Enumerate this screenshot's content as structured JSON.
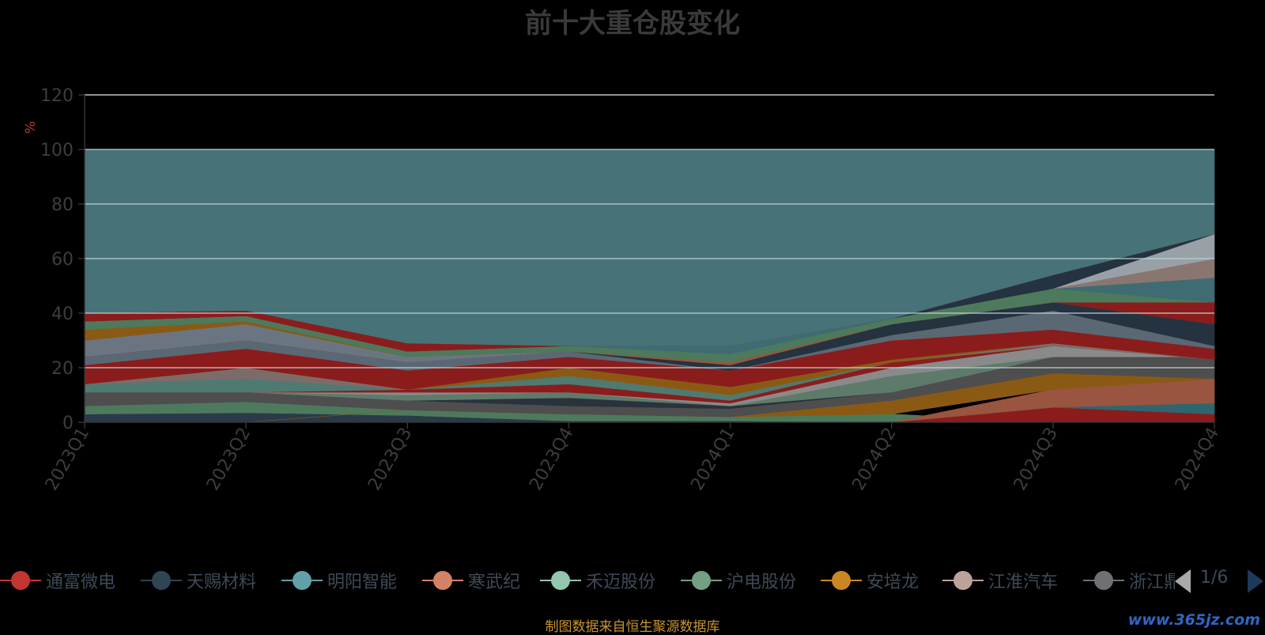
{
  "chart_data": {
    "type": "area",
    "title": "前十大重仓股变化",
    "ylabel": "%",
    "ylim": [
      0,
      120
    ],
    "yticks": [
      0,
      20,
      40,
      60,
      80,
      100,
      120
    ],
    "categories": [
      "2023Q1",
      "2023Q2",
      "2023Q3",
      "2023Q4",
      "2024Q1",
      "2024Q2",
      "2024Q3",
      "2024Q4"
    ],
    "bands": [
      {
        "color": "#2b3a49",
        "values": [
          [
            0,
            3
          ],
          [
            0,
            3.5
          ],
          [
            0,
            2.5
          ],
          [
            0,
            0.5
          ],
          [
            0,
            0.5
          ],
          [
            0,
            0
          ],
          [
            0,
            0
          ],
          [
            0,
            0
          ]
        ]
      },
      {
        "color": "#4d7a5c",
        "values": [
          [
            3,
            6
          ],
          [
            3.5,
            7.5
          ],
          [
            2.5,
            4.5
          ],
          [
            0.5,
            3
          ],
          [
            0.5,
            2
          ],
          [
            0,
            3
          ],
          [
            0,
            0
          ],
          [
            0,
            0
          ]
        ]
      },
      {
        "color": "#8b1c1c",
        "values": [
          [
            0,
            0
          ],
          [
            0,
            0
          ],
          [
            0,
            0
          ],
          [
            0,
            0
          ],
          [
            0,
            0
          ],
          [
            0,
            0
          ],
          [
            0,
            5.5
          ],
          [
            0,
            3
          ]
        ]
      },
      {
        "color": "#2e6670",
        "values": [
          [
            0,
            0
          ],
          [
            0,
            0
          ],
          [
            0,
            0
          ],
          [
            0,
            0
          ],
          [
            0,
            0
          ],
          [
            0,
            0
          ],
          [
            5.5,
            5.5
          ],
          [
            3,
            7
          ]
        ]
      },
      {
        "color": "#99553f",
        "values": [
          [
            0,
            0
          ],
          [
            0,
            0
          ],
          [
            0,
            0
          ],
          [
            0,
            0
          ],
          [
            0,
            0
          ],
          [
            0,
            0
          ],
          [
            5.5,
            12
          ],
          [
            7,
            16
          ]
        ]
      },
      {
        "color": "#8a5a14",
        "values": [
          [
            0,
            0
          ],
          [
            0,
            0
          ],
          [
            4.5,
            4.5
          ],
          [
            3,
            3
          ],
          [
            2,
            2
          ],
          [
            3,
            8
          ],
          [
            12,
            18
          ],
          [
            16,
            16
          ]
        ]
      },
      {
        "color": "#4e4e4e",
        "values": [
          [
            6,
            11
          ],
          [
            7.5,
            11
          ],
          [
            4.5,
            8
          ],
          [
            3,
            6
          ],
          [
            2,
            5
          ],
          [
            8,
            11
          ],
          [
            18,
            24
          ],
          [
            16,
            24
          ]
        ]
      },
      {
        "color": "#2a333c",
        "values": [
          [
            11,
            11
          ],
          [
            11,
            11
          ],
          [
            8,
            8
          ],
          [
            6,
            9
          ],
          [
            5,
            6
          ],
          [
            11,
            11
          ],
          [
            24,
            24
          ],
          [
            24,
            24
          ]
        ]
      },
      {
        "color": "#5e7a6a",
        "values": [
          [
            11,
            11
          ],
          [
            11,
            11
          ],
          [
            8,
            10
          ],
          [
            9,
            11
          ],
          [
            6,
            6
          ],
          [
            11,
            17
          ],
          [
            24,
            24
          ],
          [
            24,
            24
          ]
        ]
      },
      {
        "color": "#8a8a8a",
        "values": [
          [
            11,
            11
          ],
          [
            11,
            11
          ],
          [
            10,
            11
          ],
          [
            11,
            11
          ],
          [
            6,
            7
          ],
          [
            17,
            20
          ],
          [
            24,
            28
          ],
          [
            24,
            23
          ]
        ]
      },
      {
        "color": "#8b1c1c",
        "values": [
          [
            11,
            11
          ],
          [
            11,
            11
          ],
          [
            11,
            12
          ],
          [
            11,
            14
          ],
          [
            7,
            8
          ],
          [
            20,
            22
          ],
          [
            28,
            28
          ],
          [
            23,
            23
          ]
        ]
      },
      {
        "color": "#4f7a72",
        "values": [
          [
            11,
            14
          ],
          [
            11,
            16
          ],
          [
            12,
            12
          ],
          [
            14,
            17
          ],
          [
            8,
            10
          ],
          [
            22,
            22
          ],
          [
            28,
            28
          ],
          [
            23,
            23
          ]
        ]
      },
      {
        "color": "#7b6c6a",
        "values": [
          [
            14,
            14
          ],
          [
            16,
            20
          ],
          [
            12,
            12
          ],
          [
            17,
            17
          ],
          [
            10,
            10
          ],
          [
            22,
            22
          ],
          [
            28,
            29
          ],
          [
            23,
            23
          ]
        ]
      },
      {
        "color": "#8a5a14",
        "values": [
          [
            14,
            14
          ],
          [
            20,
            20
          ],
          [
            12,
            12
          ],
          [
            17,
            20
          ],
          [
            10,
            13
          ],
          [
            22,
            23
          ],
          [
            29,
            29
          ],
          [
            23,
            23
          ]
        ]
      },
      {
        "color": "#8b1c1c",
        "values": [
          [
            14,
            21
          ],
          [
            20,
            27
          ],
          [
            12,
            19
          ],
          [
            20,
            24
          ],
          [
            13,
            19
          ],
          [
            23,
            30
          ],
          [
            29,
            34
          ],
          [
            23,
            27
          ]
        ]
      },
      {
        "color": "#5a6874",
        "values": [
          [
            21,
            24
          ],
          [
            27,
            30
          ],
          [
            19,
            22
          ],
          [
            24,
            26
          ],
          [
            19,
            19
          ],
          [
            30,
            32
          ],
          [
            34,
            41
          ],
          [
            27,
            28
          ]
        ]
      },
      {
        "color": "#253240",
        "values": [
          [
            24,
            24
          ],
          [
            30,
            30
          ],
          [
            22,
            22
          ],
          [
            26,
            26
          ],
          [
            19,
            21
          ],
          [
            32,
            36
          ],
          [
            41,
            44
          ],
          [
            28,
            36
          ]
        ]
      },
      {
        "color": "#99553f",
        "values": [
          [
            24,
            24
          ],
          [
            30,
            30
          ],
          [
            22,
            22
          ],
          [
            26,
            26
          ],
          [
            21,
            22
          ],
          [
            36,
            36
          ],
          [
            44,
            44
          ],
          [
            36,
            36
          ]
        ]
      },
      {
        "color": "#8b1c1c",
        "values": [
          [
            24,
            24
          ],
          [
            30,
            30
          ],
          [
            22,
            22
          ],
          [
            26,
            26
          ],
          [
            22,
            22
          ],
          [
            36,
            36
          ],
          [
            44,
            44
          ],
          [
            36,
            44
          ]
        ]
      },
      {
        "color": "#6b7582",
        "values": [
          [
            24,
            30
          ],
          [
            30,
            36
          ],
          [
            22,
            24
          ],
          [
            26,
            26
          ],
          [
            22,
            22
          ],
          [
            36,
            36
          ],
          [
            44,
            44
          ],
          [
            44,
            44
          ]
        ]
      },
      {
        "color": "#8a5a14",
        "values": [
          [
            30,
            34
          ],
          [
            36,
            37
          ],
          [
            24,
            24
          ],
          [
            26,
            26
          ],
          [
            22,
            22
          ],
          [
            36,
            36
          ],
          [
            44,
            44
          ],
          [
            44,
            44
          ]
        ]
      },
      {
        "color": "#4d7a5c",
        "values": [
          [
            34,
            37
          ],
          [
            37,
            39
          ],
          [
            24,
            26
          ],
          [
            26,
            28
          ],
          [
            22,
            25
          ],
          [
            36,
            38
          ],
          [
            44,
            49
          ],
          [
            44,
            44
          ]
        ]
      },
      {
        "color": "#3e6c72",
        "values": [
          [
            37,
            37
          ],
          [
            39,
            39
          ],
          [
            26,
            26
          ],
          [
            28,
            28
          ],
          [
            25,
            28
          ],
          [
            38,
            38
          ],
          [
            49,
            49
          ],
          [
            44,
            53
          ]
        ]
      },
      {
        "color": "#8a7670",
        "values": [
          [
            37,
            37
          ],
          [
            39,
            39
          ],
          [
            26,
            26
          ],
          [
            28,
            28
          ],
          [
            28,
            28
          ],
          [
            38,
            38
          ],
          [
            49,
            49
          ],
          [
            53,
            60
          ]
        ]
      },
      {
        "color": "#9aa0a8",
        "values": [
          [
            37,
            37
          ],
          [
            39,
            39
          ],
          [
            26,
            26
          ],
          [
            28,
            28
          ],
          [
            28,
            28
          ],
          [
            38,
            38
          ],
          [
            49,
            49
          ],
          [
            60,
            69
          ]
        ]
      },
      {
        "color": "#253240",
        "values": [
          [
            37,
            37
          ],
          [
            39,
            39
          ],
          [
            26,
            26
          ],
          [
            28,
            28
          ],
          [
            28,
            28
          ],
          [
            38,
            38
          ],
          [
            49,
            54
          ],
          [
            69,
            69
          ]
        ]
      },
      {
        "color": "#8b1c1c",
        "values": [
          [
            37,
            40
          ],
          [
            39,
            41
          ],
          [
            26,
            29
          ],
          [
            28,
            28
          ],
          [
            28,
            28
          ],
          [
            38,
            38
          ],
          [
            54,
            54
          ],
          [
            69,
            69
          ]
        ]
      },
      {
        "color": "#477278",
        "values": [
          [
            40,
            100
          ],
          [
            41,
            100
          ],
          [
            29,
            100
          ],
          [
            28,
            100
          ],
          [
            28,
            100
          ],
          [
            38,
            100
          ],
          [
            54,
            100
          ],
          [
            69,
            100
          ]
        ]
      }
    ],
    "legend_position": "bottom",
    "grid": true
  },
  "legend": {
    "items": [
      {
        "label": "通富微电",
        "color": "#c23531"
      },
      {
        "label": "天赐材料",
        "color": "#2f4554"
      },
      {
        "label": "明阳智能",
        "color": "#61a0a8"
      },
      {
        "label": "寒武纪",
        "color": "#d48265"
      },
      {
        "label": "禾迈股份",
        "color": "#91c7ae"
      },
      {
        "label": "沪电股份",
        "color": "#749f83"
      },
      {
        "label": "安培龙",
        "color": "#ca8622"
      },
      {
        "label": "江淮汽车",
        "color": "#bda29a"
      },
      {
        "label": "浙江鼎力",
        "color": "#6e7074"
      }
    ],
    "page": "1/6"
  },
  "footer": {
    "source": "制图数据来自恒生聚源数据库",
    "watermark": "www.365jz.com"
  }
}
